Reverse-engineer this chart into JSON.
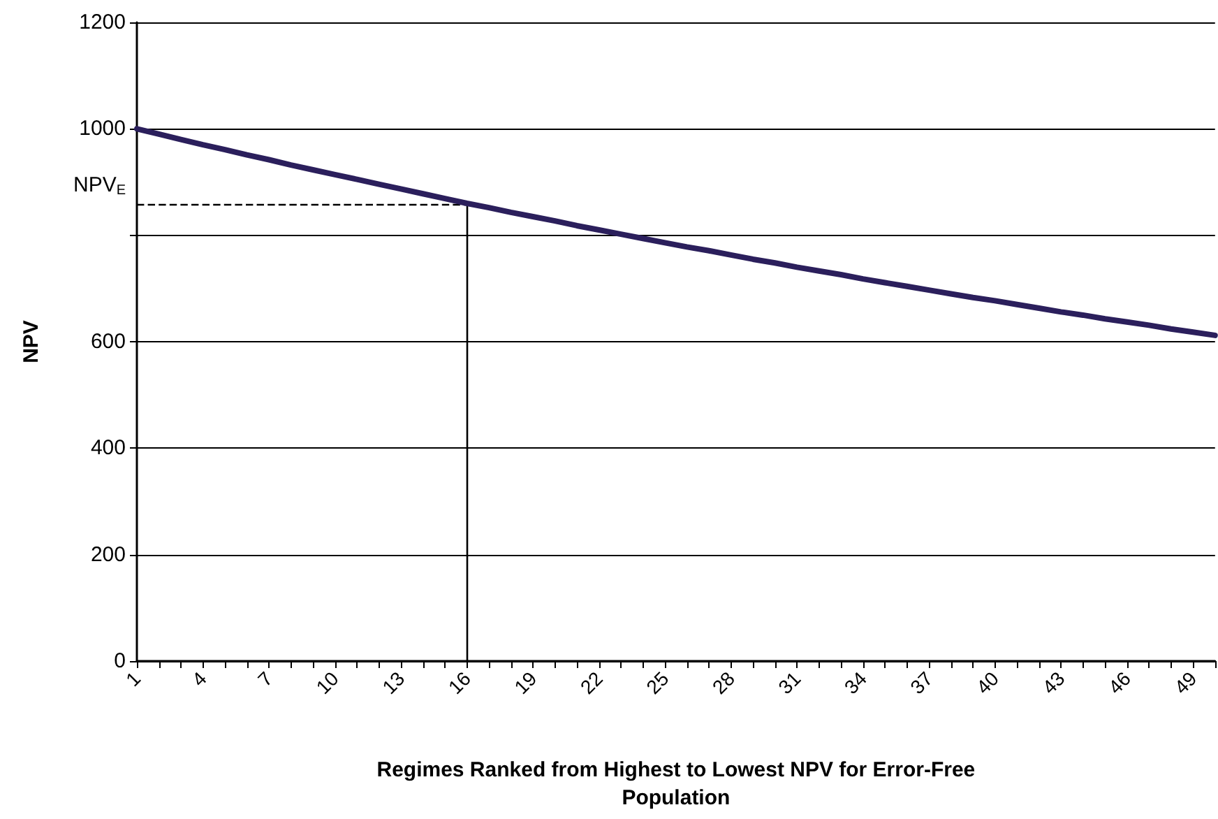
{
  "chart_data": {
    "type": "line",
    "xlabel": "Regimes Ranked from Highest to Lowest NPV for Error-Free Population",
    "ylabel": "NPV",
    "categories": [
      "1",
      null,
      null,
      "4",
      null,
      null,
      "7",
      null,
      null,
      "10",
      null,
      null,
      "13",
      null,
      null,
      "16",
      null,
      null,
      "19",
      null,
      null,
      "22",
      null,
      null,
      "25",
      null,
      null,
      "28",
      null,
      null,
      "31",
      null,
      null,
      "34",
      null,
      null,
      "37",
      null,
      null,
      "40",
      null,
      null,
      "43",
      null,
      null,
      "46",
      null,
      null,
      "49",
      null
    ],
    "series": [
      {
        "color": "#2b1f5c",
        "values": [
          1000,
          990,
          980,
          970,
          961,
          951,
          942,
          932,
          923,
          914,
          905,
          896,
          887,
          878,
          869,
          860,
          852,
          843,
          835,
          827,
          818,
          810,
          802,
          794,
          786,
          778,
          771,
          763,
          755,
          748,
          740,
          733,
          726,
          718,
          711,
          704,
          697,
          690,
          683,
          677,
          670,
          663,
          656,
          650,
          643,
          637,
          631,
          624,
          618,
          612
        ]
      }
    ],
    "annotations": [
      {
        "text": "NPV$_{E}$",
        "x": "16",
        "y": 858
      }
    ],
    "ylim": [
      0,
      1200
    ],
    "yticks": [
      0,
      200,
      400,
      600,
      {
        "value": 800,
        "label": null
      },
      1000,
      1200
    ],
    "grid": "y",
    "marker": "none",
    "line_style": "solid"
  }
}
